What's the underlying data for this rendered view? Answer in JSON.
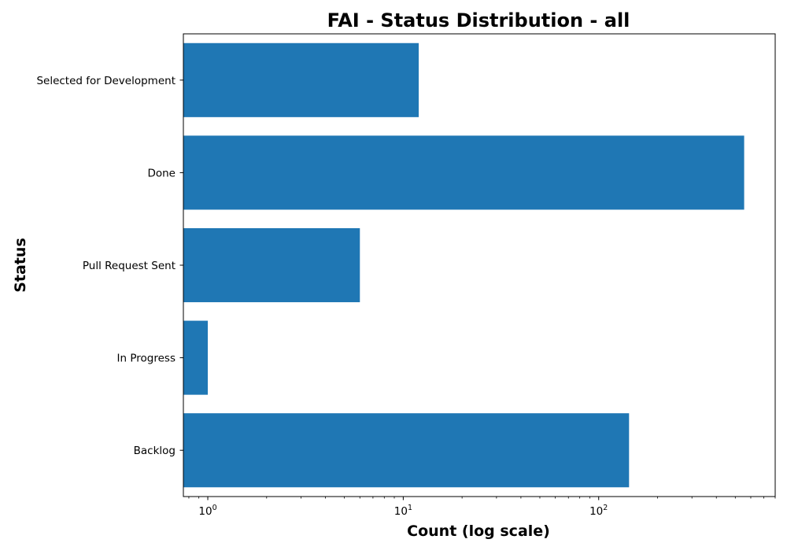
{
  "chart_data": {
    "type": "bar",
    "orientation": "horizontal",
    "title": "FAI - Status Distribution - all",
    "xlabel": "Count (log scale)",
    "ylabel": "Status",
    "x_scale": "log",
    "xlim": [
      0.75,
      800
    ],
    "x_ticks": [
      {
        "value": 1,
        "base": "10",
        "exp": "0"
      },
      {
        "value": 10,
        "base": "10",
        "exp": "1"
      },
      {
        "value": 100,
        "base": "10",
        "exp": "2"
      }
    ],
    "grid": false,
    "categories": [
      "Selected for Development",
      "Done",
      "Pull Request Sent",
      "In Progress",
      "Backlog"
    ],
    "values": [
      12,
      555,
      6,
      1,
      143
    ],
    "colors": {
      "bar": "#1f77b4",
      "axis": "#000000",
      "background": "#ffffff"
    }
  }
}
